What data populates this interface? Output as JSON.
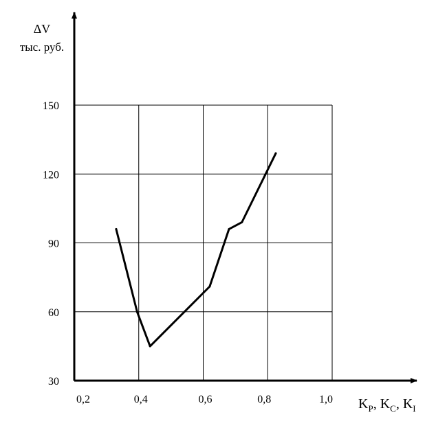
{
  "chart_data": {
    "type": "line",
    "title": "",
    "ylabel_symbol": "ΔV",
    "ylabel_units": "тыс. руб.",
    "xlabel": {
      "parts": [
        {
          "base": "K",
          "sub": "P",
          "sep": ", "
        },
        {
          "base": "K",
          "sub": "C",
          "sep": ", "
        },
        {
          "base": "K",
          "sub": "I",
          "sep": ""
        }
      ]
    },
    "x_ticks": [
      {
        "value": 0.2,
        "label": "0,2"
      },
      {
        "value": 0.4,
        "label": "0,4"
      },
      {
        "value": 0.6,
        "label": "0,6"
      },
      {
        "value": 0.8,
        "label": "0,8"
      },
      {
        "value": 1.0,
        "label": "1,0"
      }
    ],
    "y_ticks": [
      {
        "value": 30,
        "label": "30"
      },
      {
        "value": 60,
        "label": "60"
      },
      {
        "value": 90,
        "label": "90"
      },
      {
        "value": 120,
        "label": "120"
      },
      {
        "value": 150,
        "label": "150"
      }
    ],
    "xlim": [
      0.2,
      1.0
    ],
    "ylim": [
      30,
      150
    ],
    "grid": true,
    "series": [
      {
        "x": [
          0.33,
          0.395,
          0.435,
          0.62,
          0.68,
          0.72,
          0.825
        ],
        "y": [
          96,
          60,
          45,
          71,
          96,
          99,
          129
        ]
      }
    ]
  }
}
